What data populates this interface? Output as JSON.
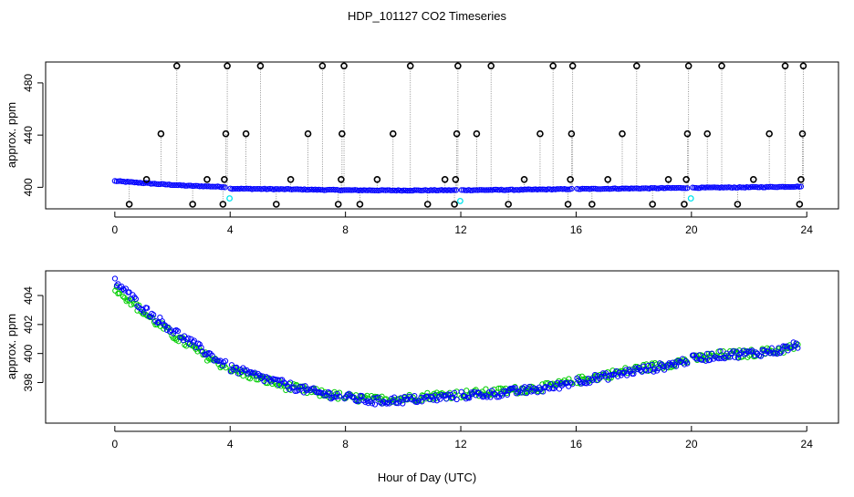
{
  "figure": {
    "title": "HDP_101127  CO2 Timeseries",
    "xlabel": "Hour of Day (UTC)"
  },
  "chart_data": [
    {
      "type": "scatter",
      "name": "raw-co2",
      "ylabel": "approx. ppm",
      "xlim": [
        -2.4,
        25.1
      ],
      "ylim": [
        383.5,
        496
      ],
      "xticks": [
        0,
        4,
        8,
        12,
        16,
        20,
        24
      ],
      "yticks": [
        400,
        440,
        480
      ],
      "baseline": {
        "color": "#0000ff",
        "anchors": [
          [
            0,
            404.8
          ],
          [
            1.5,
            402.5
          ],
          [
            2.5,
            401.2
          ],
          [
            3.8,
            400.3
          ],
          [
            4,
            399.0
          ],
          [
            6,
            398.5
          ],
          [
            8,
            397.8
          ],
          [
            10,
            397.6
          ],
          [
            12,
            397.8
          ],
          [
            14,
            398.1
          ],
          [
            16,
            398.7
          ],
          [
            18,
            399.1
          ],
          [
            20,
            399.6
          ],
          [
            22,
            400.0
          ],
          [
            23.8,
            400.6
          ]
        ],
        "x_range": [
          0,
          23.8
        ],
        "gaps": [
          [
            3.88,
            4.0
          ],
          [
            11.88,
            12.0
          ],
          [
            15.88,
            16.0
          ],
          [
            19.88,
            20.0
          ]
        ]
      },
      "outliers": {
        "color": "#000000",
        "x": [
          0.5,
          1.1,
          1.6,
          2.15,
          2.7,
          3.2,
          3.75,
          3.8,
          3.85,
          3.9,
          4.55,
          5.05,
          5.6,
          6.1,
          6.7,
          7.2,
          7.75,
          7.85,
          7.88,
          7.95,
          8.5,
          9.1,
          9.65,
          10.25,
          10.85,
          11.45,
          11.78,
          11.82,
          11.86,
          11.9,
          12.55,
          13.05,
          13.65,
          14.2,
          14.75,
          15.2,
          15.72,
          15.8,
          15.84,
          15.88,
          16.55,
          17.1,
          17.6,
          18.1,
          18.65,
          19.2,
          19.75,
          19.82,
          19.86,
          19.9,
          20.55,
          21.05,
          21.6,
          22.15,
          22.7,
          23.25,
          23.75,
          23.8,
          23.85,
          23.88
        ],
        "y": [
          387,
          406,
          441,
          493,
          387,
          406,
          387,
          406,
          441,
          493,
          441,
          493,
          387,
          406,
          441,
          493,
          387,
          406,
          441,
          493,
          387,
          406,
          441,
          493,
          387,
          406,
          387,
          406,
          441,
          493,
          441,
          493,
          387,
          406,
          441,
          493,
          387,
          406,
          441,
          493,
          387,
          406,
          441,
          493,
          387,
          406,
          387,
          406,
          441,
          493,
          441,
          493,
          387,
          406,
          441,
          493,
          387,
          406,
          441,
          493
        ]
      },
      "cyan_points": {
        "color": "#00e5ee",
        "x": [
          3.98,
          11.98,
          19.98
        ],
        "y": [
          391.5,
          389.5,
          391.5
        ]
      }
    },
    {
      "type": "scatter",
      "name": "filtered-co2",
      "ylabel": "approx. ppm",
      "xlim": [
        -2.4,
        25.1
      ],
      "ylim": [
        395.2,
        405.7
      ],
      "xticks": [
        0,
        4,
        8,
        12,
        16,
        20,
        24
      ],
      "yticks": [
        398,
        400,
        402,
        404
      ],
      "series": [
        {
          "name": "blue",
          "color": "#0000ff",
          "anchors": [
            [
              0,
              405.0
            ],
            [
              1,
              403.1
            ],
            [
              2,
              401.6
            ],
            [
              3,
              400.3
            ],
            [
              4,
              399.0
            ],
            [
              5,
              398.4
            ],
            [
              6,
              397.8
            ],
            [
              7,
              397.3
            ],
            [
              8,
              397.0
            ],
            [
              9,
              396.7
            ],
            [
              10,
              396.8
            ],
            [
              11,
              396.9
            ],
            [
              12,
              397.1
            ],
            [
              13,
              397.2
            ],
            [
              14,
              397.4
            ],
            [
              15,
              397.6
            ],
            [
              16,
              398.1
            ],
            [
              17,
              398.4
            ],
            [
              18,
              398.8
            ],
            [
              19,
              399.1
            ],
            [
              20,
              399.6
            ],
            [
              21,
              399.9
            ],
            [
              22,
              400.0
            ],
            [
              23,
              400.2
            ],
            [
              23.7,
              400.6
            ]
          ],
          "x_range": [
            0,
            23.7
          ]
        },
        {
          "name": "green",
          "color": "#00cd00",
          "anchors": [
            [
              0,
              404.6
            ],
            [
              1,
              402.8
            ],
            [
              2,
              401.3
            ],
            [
              3,
              400.0
            ],
            [
              4,
              398.9
            ],
            [
              5,
              398.3
            ],
            [
              6,
              397.7
            ],
            [
              7,
              397.3
            ],
            [
              8,
              397.0
            ],
            [
              9,
              396.8
            ],
            [
              10,
              396.9
            ],
            [
              11,
              397.1
            ],
            [
              12,
              397.2
            ],
            [
              13,
              397.3
            ],
            [
              14,
              397.5
            ],
            [
              15,
              397.7
            ],
            [
              16,
              398.1
            ],
            [
              17,
              398.5
            ],
            [
              18,
              398.9
            ],
            [
              19,
              399.2
            ],
            [
              20,
              399.6
            ],
            [
              21,
              399.9
            ],
            [
              22,
              400.0
            ],
            [
              23,
              400.2
            ],
            [
              23.7,
              400.5
            ]
          ],
          "x_range": [
            0,
            23.7
          ]
        }
      ],
      "gaps": [
        [
          3.88,
          4.0
        ],
        [
          7.8,
          7.95
        ],
        [
          11.88,
          12.0
        ],
        [
          15.88,
          16.0
        ],
        [
          19.88,
          20.0
        ]
      ]
    }
  ]
}
